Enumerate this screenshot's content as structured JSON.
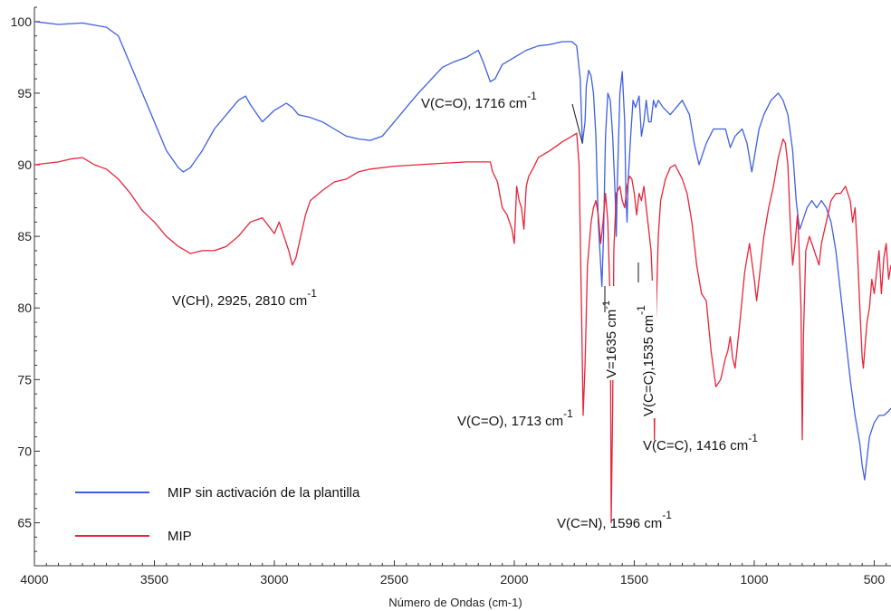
{
  "chart_data": {
    "type": "line",
    "title": "",
    "xlabel": "Número de Ondas (cm-1)",
    "ylabel": "",
    "xlim": [
      4000,
      430
    ],
    "ylim": [
      62,
      101
    ],
    "x_reversed": true,
    "xticks": [
      4000,
      3500,
      3000,
      2500,
      2000,
      1500,
      1000,
      500
    ],
    "yticks": [
      65,
      70,
      75,
      80,
      85,
      90,
      95,
      100
    ],
    "grid": false,
    "legend_position": "bottom-left",
    "series": [
      {
        "name": "MIP sin activación de la plantilla",
        "color": "#3f5fe0",
        "points": [
          [
            4000,
            100.0
          ],
          [
            3900,
            99.8
          ],
          [
            3800,
            99.9
          ],
          [
            3700,
            99.6
          ],
          [
            3650,
            99.0
          ],
          [
            3600,
            97.0
          ],
          [
            3550,
            95.0
          ],
          [
            3500,
            93.0
          ],
          [
            3450,
            91.0
          ],
          [
            3400,
            89.8
          ],
          [
            3380,
            89.5
          ],
          [
            3350,
            89.8
          ],
          [
            3300,
            91.0
          ],
          [
            3250,
            92.5
          ],
          [
            3200,
            93.5
          ],
          [
            3150,
            94.5
          ],
          [
            3120,
            94.8
          ],
          [
            3100,
            94.2
          ],
          [
            3050,
            93.0
          ],
          [
            3000,
            93.8
          ],
          [
            2950,
            94.3
          ],
          [
            2925,
            94.0
          ],
          [
            2900,
            93.5
          ],
          [
            2850,
            93.3
          ],
          [
            2800,
            93.0
          ],
          [
            2750,
            92.5
          ],
          [
            2700,
            92.0
          ],
          [
            2650,
            91.8
          ],
          [
            2600,
            91.7
          ],
          [
            2550,
            92.0
          ],
          [
            2500,
            93.0
          ],
          [
            2450,
            94.0
          ],
          [
            2400,
            95.0
          ],
          [
            2300,
            96.8
          ],
          [
            2250,
            97.2
          ],
          [
            2200,
            97.5
          ],
          [
            2150,
            98.0
          ],
          [
            2130,
            97.2
          ],
          [
            2100,
            95.8
          ],
          [
            2080,
            96.0
          ],
          [
            2050,
            97.0
          ],
          [
            2000,
            97.5
          ],
          [
            1950,
            98.0
          ],
          [
            1900,
            98.3
          ],
          [
            1850,
            98.4
          ],
          [
            1800,
            98.6
          ],
          [
            1760,
            98.6
          ],
          [
            1740,
            98.3
          ],
          [
            1725,
            96.0
          ],
          [
            1716,
            91.5
          ],
          [
            1705,
            93.0
          ],
          [
            1700,
            95.5
          ],
          [
            1690,
            96.6
          ],
          [
            1680,
            96.2
          ],
          [
            1670,
            95.0
          ],
          [
            1660,
            92.0
          ],
          [
            1650,
            86.0
          ],
          [
            1640,
            83.0
          ],
          [
            1635,
            81.5
          ],
          [
            1628,
            85.0
          ],
          [
            1620,
            92.0
          ],
          [
            1610,
            95.0
          ],
          [
            1600,
            94.5
          ],
          [
            1590,
            92.0
          ],
          [
            1580,
            88.0
          ],
          [
            1575,
            85.0
          ],
          [
            1570,
            89.0
          ],
          [
            1560,
            95.0
          ],
          [
            1550,
            96.5
          ],
          [
            1540,
            93.0
          ],
          [
            1535,
            88.0
          ],
          [
            1530,
            86.0
          ],
          [
            1525,
            89.0
          ],
          [
            1515,
            92.0
          ],
          [
            1505,
            94.5
          ],
          [
            1495,
            94.0
          ],
          [
            1480,
            94.8
          ],
          [
            1470,
            92.0
          ],
          [
            1460,
            93.0
          ],
          [
            1450,
            94.5
          ],
          [
            1440,
            93.0
          ],
          [
            1430,
            93.0
          ],
          [
            1420,
            94.5
          ],
          [
            1410,
            94.0
          ],
          [
            1400,
            94.5
          ],
          [
            1380,
            94.0
          ],
          [
            1350,
            93.5
          ],
          [
            1300,
            94.5
          ],
          [
            1270,
            93.5
          ],
          [
            1250,
            91.5
          ],
          [
            1230,
            90.0
          ],
          [
            1200,
            91.5
          ],
          [
            1170,
            92.5
          ],
          [
            1150,
            92.5
          ],
          [
            1120,
            92.5
          ],
          [
            1100,
            91.2
          ],
          [
            1080,
            92.0
          ],
          [
            1050,
            92.5
          ],
          [
            1030,
            91.5
          ],
          [
            1010,
            89.5
          ],
          [
            1000,
            90.5
          ],
          [
            980,
            92.5
          ],
          [
            960,
            93.5
          ],
          [
            930,
            94.5
          ],
          [
            900,
            95.0
          ],
          [
            880,
            94.5
          ],
          [
            860,
            93.5
          ],
          [
            840,
            91.0
          ],
          [
            825,
            87.5
          ],
          [
            815,
            86.0
          ],
          [
            810,
            85.5
          ],
          [
            800,
            86.0
          ],
          [
            780,
            87.0
          ],
          [
            760,
            87.5
          ],
          [
            740,
            87.0
          ],
          [
            720,
            87.5
          ],
          [
            700,
            87.0
          ],
          [
            680,
            86.0
          ],
          [
            660,
            84.0
          ],
          [
            640,
            81.0
          ],
          [
            620,
            78.0
          ],
          [
            600,
            75.0
          ],
          [
            580,
            72.5
          ],
          [
            560,
            70.5
          ],
          [
            550,
            69.0
          ],
          [
            540,
            68.0
          ],
          [
            530,
            69.5
          ],
          [
            520,
            71.0
          ],
          [
            500,
            72.0
          ],
          [
            480,
            72.5
          ],
          [
            460,
            72.5
          ],
          [
            440,
            72.8
          ],
          [
            430,
            73.0
          ]
        ]
      },
      {
        "name": "MIP",
        "color": "#e8243a",
        "points": [
          [
            4000,
            90.0
          ],
          [
            3900,
            90.2
          ],
          [
            3850,
            90.4
          ],
          [
            3800,
            90.5
          ],
          [
            3750,
            90.0
          ],
          [
            3700,
            89.7
          ],
          [
            3650,
            89.0
          ],
          [
            3600,
            88.0
          ],
          [
            3550,
            86.8
          ],
          [
            3500,
            86.0
          ],
          [
            3450,
            85.0
          ],
          [
            3400,
            84.3
          ],
          [
            3350,
            83.8
          ],
          [
            3300,
            84.0
          ],
          [
            3250,
            84.0
          ],
          [
            3200,
            84.3
          ],
          [
            3150,
            85.0
          ],
          [
            3100,
            86.0
          ],
          [
            3050,
            86.3
          ],
          [
            3000,
            85.2
          ],
          [
            2980,
            86.0
          ],
          [
            2960,
            85.0
          ],
          [
            2940,
            84.0
          ],
          [
            2925,
            83.0
          ],
          [
            2910,
            83.5
          ],
          [
            2890,
            85.0
          ],
          [
            2870,
            86.5
          ],
          [
            2850,
            87.5
          ],
          [
            2800,
            88.2
          ],
          [
            2750,
            88.8
          ],
          [
            2700,
            89.0
          ],
          [
            2650,
            89.5
          ],
          [
            2600,
            89.7
          ],
          [
            2500,
            89.9
          ],
          [
            2400,
            90.0
          ],
          [
            2300,
            90.1
          ],
          [
            2200,
            90.2
          ],
          [
            2100,
            90.2
          ],
          [
            2090,
            89.5
          ],
          [
            2070,
            88.8
          ],
          [
            2050,
            87.0
          ],
          [
            2030,
            86.5
          ],
          [
            2010,
            85.5
          ],
          [
            2000,
            84.5
          ],
          [
            1990,
            88.5
          ],
          [
            1980,
            87.5
          ],
          [
            1970,
            87.0
          ],
          [
            1960,
            85.5
          ],
          [
            1950,
            88.5
          ],
          [
            1940,
            89.2
          ],
          [
            1920,
            89.8
          ],
          [
            1900,
            90.5
          ],
          [
            1850,
            91.0
          ],
          [
            1800,
            91.6
          ],
          [
            1760,
            92.0
          ],
          [
            1740,
            92.2
          ],
          [
            1730,
            90.0
          ],
          [
            1720,
            80.0
          ],
          [
            1713,
            72.5
          ],
          [
            1705,
            76.0
          ],
          [
            1695,
            83.0
          ],
          [
            1680,
            86.0
          ],
          [
            1670,
            87.0
          ],
          [
            1660,
            87.5
          ],
          [
            1650,
            86.5
          ],
          [
            1640,
            84.5
          ],
          [
            1630,
            86.0
          ],
          [
            1620,
            88.0
          ],
          [
            1610,
            86.0
          ],
          [
            1600,
            80.0
          ],
          [
            1596,
            65.0
          ],
          [
            1590,
            73.0
          ],
          [
            1585,
            84.0
          ],
          [
            1575,
            88.0
          ],
          [
            1560,
            88.5
          ],
          [
            1550,
            87.5
          ],
          [
            1540,
            87.0
          ],
          [
            1530,
            88.5
          ],
          [
            1520,
            89.2
          ],
          [
            1510,
            89.0
          ],
          [
            1500,
            88.0
          ],
          [
            1490,
            86.5
          ],
          [
            1480,
            88.0
          ],
          [
            1470,
            87.5
          ],
          [
            1460,
            88.5
          ],
          [
            1450,
            87.0
          ],
          [
            1440,
            85.5
          ],
          [
            1430,
            84.0
          ],
          [
            1420,
            80.0
          ],
          [
            1416,
            70.8
          ],
          [
            1410,
            79.0
          ],
          [
            1400,
            85.0
          ],
          [
            1390,
            87.5
          ],
          [
            1370,
            89.0
          ],
          [
            1350,
            89.8
          ],
          [
            1330,
            90.0
          ],
          [
            1300,
            89.0
          ],
          [
            1280,
            88.0
          ],
          [
            1260,
            86.0
          ],
          [
            1240,
            83.0
          ],
          [
            1220,
            81.0
          ],
          [
            1200,
            80.5
          ],
          [
            1180,
            77.0
          ],
          [
            1160,
            74.5
          ],
          [
            1140,
            75.0
          ],
          [
            1120,
            76.5
          ],
          [
            1110,
            77.0
          ],
          [
            1100,
            78.0
          ],
          [
            1090,
            76.5
          ],
          [
            1080,
            75.8
          ],
          [
            1060,
            79.0
          ],
          [
            1040,
            82.5
          ],
          [
            1020,
            84.5
          ],
          [
            1000,
            82.0
          ],
          [
            990,
            80.5
          ],
          [
            980,
            82.0
          ],
          [
            960,
            85.0
          ],
          [
            940,
            87.0
          ],
          [
            920,
            88.5
          ],
          [
            900,
            90.5
          ],
          [
            880,
            91.8
          ],
          [
            870,
            91.5
          ],
          [
            860,
            90.0
          ],
          [
            850,
            86.0
          ],
          [
            840,
            83.0
          ],
          [
            830,
            84.5
          ],
          [
            820,
            86.5
          ],
          [
            815,
            85.0
          ],
          [
            805,
            80.0
          ],
          [
            800,
            70.8
          ],
          [
            795,
            78.0
          ],
          [
            785,
            84.0
          ],
          [
            770,
            85.0
          ],
          [
            760,
            84.5
          ],
          [
            740,
            83.5
          ],
          [
            730,
            83.0
          ],
          [
            720,
            84.5
          ],
          [
            700,
            86.0
          ],
          [
            680,
            87.5
          ],
          [
            660,
            88.0
          ],
          [
            640,
            88.0
          ],
          [
            620,
            88.5
          ],
          [
            600,
            87.5
          ],
          [
            590,
            86.0
          ],
          [
            580,
            87.0
          ],
          [
            570,
            84.0
          ],
          [
            560,
            80.0
          ],
          [
            550,
            76.5
          ],
          [
            545,
            75.8
          ],
          [
            540,
            77.0
          ],
          [
            530,
            79.0
          ],
          [
            520,
            80.0
          ],
          [
            510,
            82.0
          ],
          [
            500,
            81.0
          ],
          [
            490,
            82.5
          ],
          [
            480,
            84.0
          ],
          [
            470,
            81.0
          ],
          [
            460,
            83.5
          ],
          [
            450,
            84.5
          ],
          [
            440,
            82.0
          ],
          [
            430,
            83.0
          ]
        ]
      }
    ],
    "annotations": [
      {
        "id": "ch",
        "base": "V(CH), 2925, 2810 cm",
        "sup": "-1"
      },
      {
        "id": "co_blue",
        "base": "V(C=O), 1716 cm",
        "sup": "-1"
      },
      {
        "id": "co_red",
        "base": "V(C=O), 1713 cm",
        "sup": "-1"
      },
      {
        "id": "cn",
        "base": "V(C=N), 1596 cm",
        "sup": "-1"
      },
      {
        "id": "cc1416",
        "base": "V(C=C), 1416 cm",
        "sup": "-1"
      },
      {
        "id": "v1635",
        "base": "V=1635 cm",
        "sup": "-1"
      },
      {
        "id": "cc1535",
        "base": "V(C=C),1535 cm",
        "sup": "-1"
      }
    ]
  }
}
